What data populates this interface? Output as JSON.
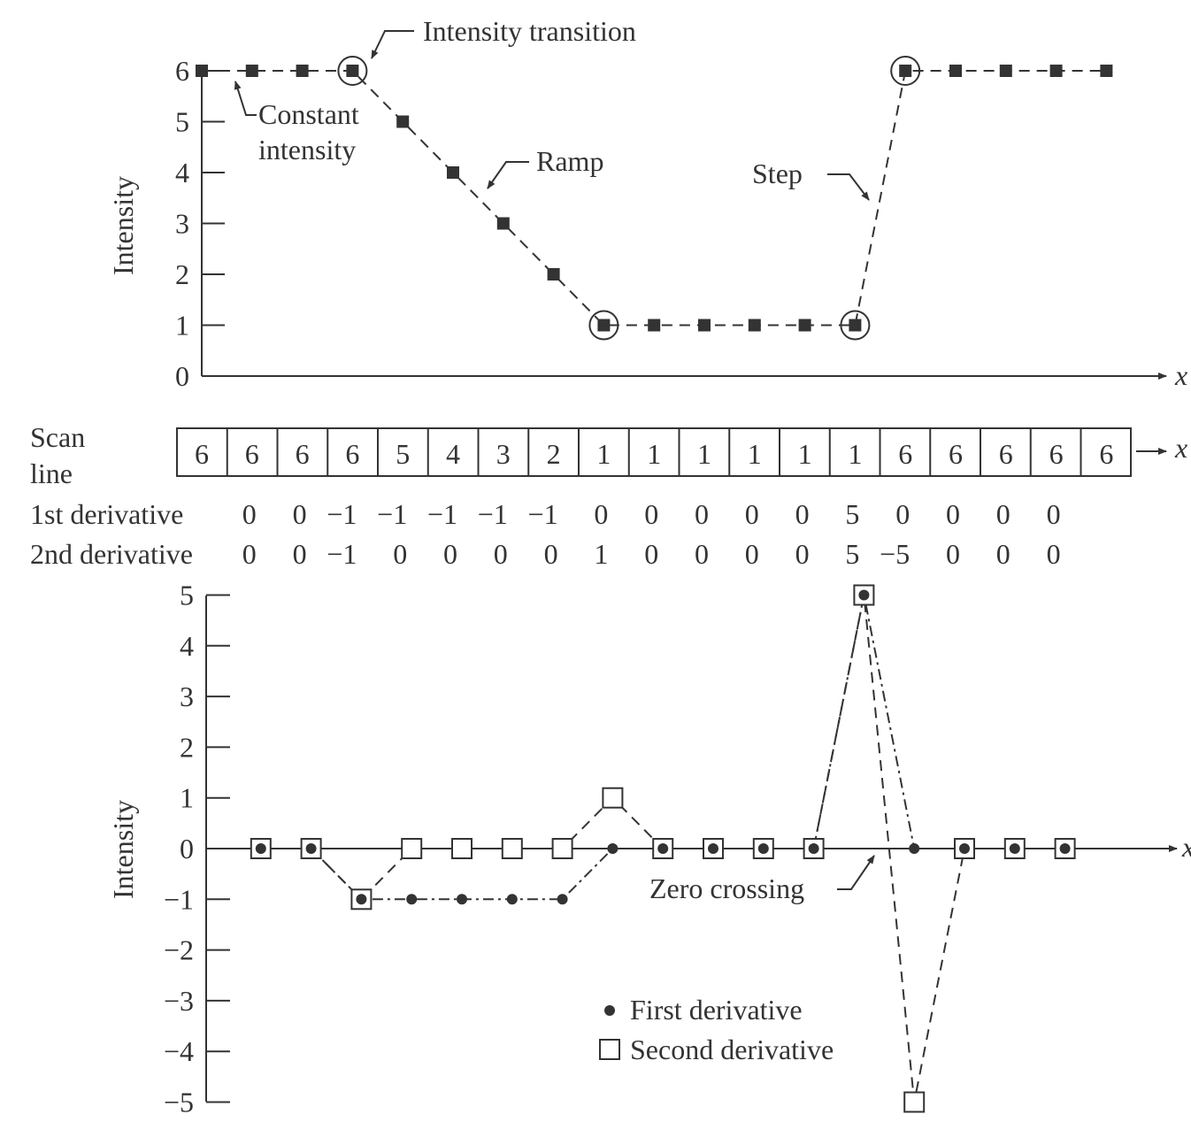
{
  "chart_data": [
    {
      "type": "line",
      "name": "intensity-profile",
      "ylabel": "Intensity",
      "xlabel": "x",
      "yticks": [
        0,
        1,
        2,
        3,
        4,
        5,
        6
      ],
      "ylim": [
        0,
        6
      ],
      "x": [
        0,
        1,
        2,
        3,
        4,
        5,
        6,
        7,
        8,
        9,
        10,
        11,
        12,
        13,
        14,
        15,
        16,
        17,
        18
      ],
      "series": [
        {
          "values": [
            6,
            6,
            6,
            6,
            5,
            4,
            3,
            2,
            1,
            1,
            1,
            1,
            1,
            1,
            6,
            6,
            6,
            6,
            6
          ]
        }
      ],
      "transition_points": [
        3,
        8,
        13,
        14
      ],
      "annotations": {
        "transition": "Intensity transition",
        "constant_1": "Constant",
        "constant_2": "intensity",
        "ramp": "Ramp",
        "step": "Step"
      },
      "grid": false
    },
    {
      "type": "table",
      "name": "scan-line-table",
      "scan_label_1": "Scan",
      "scan_label_2": "line",
      "scan_axis": "x",
      "scan_line": [
        "6",
        "6",
        "6",
        "6",
        "5",
        "4",
        "3",
        "2",
        "1",
        "1",
        "1",
        "1",
        "1",
        "1",
        "6",
        "6",
        "6",
        "6",
        "6"
      ],
      "first_label": "1st derivative",
      "first_derivative": [
        "0",
        "0",
        "−1",
        "−1",
        "−1",
        "−1",
        "−1",
        "0",
        "0",
        "0",
        "0",
        "0",
        "5",
        "0",
        "0",
        "0",
        "0"
      ],
      "second_label": "2nd derivative",
      "second_derivative": [
        "0",
        "0",
        "−1",
        "0",
        "0",
        "0",
        "0",
        "1",
        "0",
        "0",
        "0",
        "0",
        "5",
        "−5",
        "0",
        "0",
        "0"
      ]
    },
    {
      "type": "line",
      "name": "derivatives",
      "ylabel": "Intensity",
      "xlabel": "x",
      "yticks": [
        -5,
        -4,
        -3,
        -2,
        -1,
        0,
        1,
        2,
        3,
        4,
        5
      ],
      "ylim": [
        -5,
        5
      ],
      "x": [
        1,
        2,
        3,
        4,
        5,
        6,
        7,
        8,
        9,
        10,
        11,
        12,
        13,
        14,
        15,
        16,
        17
      ],
      "series": [
        {
          "name": "First derivative",
          "marker": "dot",
          "values": [
            0,
            0,
            -1,
            -1,
            -1,
            -1,
            -1,
            0,
            0,
            0,
            0,
            0,
            5,
            0,
            0,
            0,
            0
          ]
        },
        {
          "name": "Second derivative",
          "marker": "square",
          "values": [
            0,
            0,
            -1,
            0,
            0,
            0,
            0,
            1,
            0,
            0,
            0,
            0,
            5,
            -5,
            0,
            0,
            0
          ]
        }
      ],
      "annotations": {
        "zero_crossing": "Zero crossing"
      },
      "legend": "bottom-center",
      "grid": false
    }
  ]
}
